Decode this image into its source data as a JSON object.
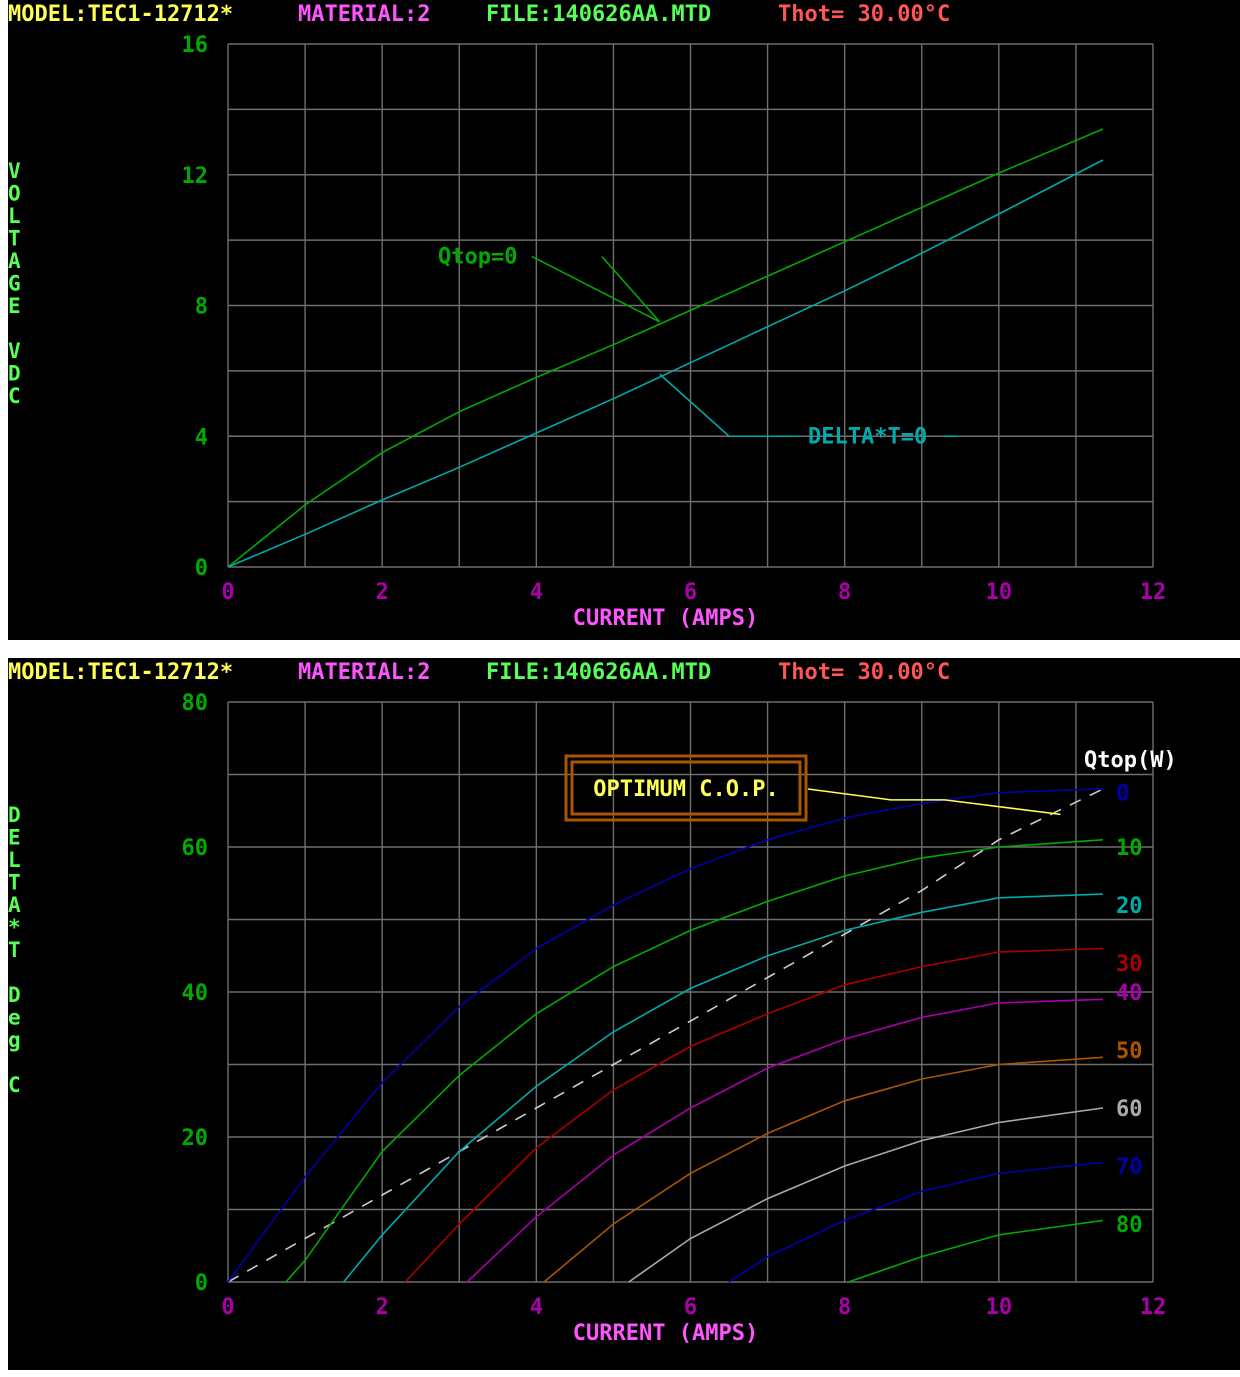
{
  "colors": {
    "background": "#000000",
    "grid": "#6e6e6e",
    "header_model": "#ffff55",
    "header_material": "#ff55ff",
    "header_file": "#55ff55",
    "header_thot": "#ff5555",
    "axis_tick": "#aa00aa",
    "yaxis_tick": "#00aa00",
    "axis_title": "#ff55ff",
    "ylabel": "#55ff55"
  },
  "charts": [
    {
      "header": {
        "model": "MODEL:TEC1-12712*",
        "material": "MATERIAL:2",
        "file": "FILE:140626AA.MTD",
        "thot": "Thot= 30.00°C"
      }
    },
    {
      "header": {
        "model": "MODEL:TEC1-12712*",
        "material": "MATERIAL:2",
        "file": "FILE:140626AA.MTD",
        "thot": "Thot= 30.00°C"
      }
    }
  ],
  "chart_data": [
    {
      "type": "line",
      "xlabel": "CURRENT (AMPS)",
      "ylabel": "VOLTAGE VDC",
      "ylabel_chars": [
        "V",
        "O",
        "L",
        "T",
        "A",
        "G",
        "E",
        "",
        "V",
        "D",
        "C"
      ],
      "xlim": [
        0,
        12
      ],
      "ylim": [
        0,
        16
      ],
      "xticks": [
        "0",
        "2",
        "4",
        "6",
        "8",
        "10",
        "12"
      ],
      "yticks": [
        "0",
        "4",
        "8",
        "12",
        "16"
      ],
      "grid": true,
      "series": [
        {
          "name": "Qtop=0",
          "color": "#00aa00",
          "x": [
            0,
            1,
            2,
            3,
            4,
            5,
            6,
            7,
            8,
            9,
            10,
            11.35
          ],
          "y": [
            0,
            1.9,
            3.5,
            4.75,
            5.8,
            6.8,
            7.85,
            8.9,
            9.95,
            11.0,
            12.05,
            13.4
          ]
        },
        {
          "name": "DELTA*T=0",
          "color": "#00aaaa",
          "x": [
            0,
            1,
            2,
            3,
            4,
            5,
            6,
            7,
            8,
            9,
            10,
            11.35
          ],
          "y": [
            0,
            1.0,
            2.05,
            3.05,
            4.1,
            5.15,
            6.25,
            7.35,
            8.45,
            9.6,
            10.8,
            12.45
          ]
        }
      ],
      "annotations": [
        {
          "text": "Qtop=0",
          "color": "#00aa00",
          "text_at": [
            3.0,
            9.5
          ],
          "leader": [
            [
              4.85,
              9.5
            ],
            [
              5.6,
              7.5
            ]
          ]
        },
        {
          "text": "DELTA*T=0",
          "color": "#00aaaa",
          "text_at": [
            7.6,
            4.0
          ],
          "leader": [
            [
              7.4,
              4.0
            ],
            [
              6.5,
              4.0
            ],
            [
              5.6,
              5.9
            ]
          ]
        }
      ]
    },
    {
      "type": "line",
      "xlabel": "CURRENT (AMPS)",
      "ylabel": "DELTA*T Deg C",
      "ylabel_chars": [
        "D",
        "E",
        "L",
        "T",
        "A",
        "*",
        "T",
        "",
        "D",
        "e",
        "g",
        "",
        "C"
      ],
      "xlim": [
        0,
        12
      ],
      "ylim": [
        0,
        80
      ],
      "xticks": [
        "0",
        "2",
        "4",
        "6",
        "8",
        "10",
        "12"
      ],
      "yticks": [
        "0",
        "20",
        "40",
        "60",
        "80"
      ],
      "grid": true,
      "legend_title": "Qtop(W)",
      "series": [
        {
          "name": "0",
          "color": "#0000aa",
          "x": [
            0,
            1,
            2,
            3,
            4,
            5,
            6,
            7,
            8,
            9,
            10,
            11.35
          ],
          "y": [
            0,
            14.5,
            27.5,
            38,
            46,
            52,
            57,
            61,
            64,
            66,
            67.5,
            68
          ]
        },
        {
          "name": "10",
          "color": "#00aa00",
          "x": [
            0.75,
            1,
            2,
            3,
            4,
            5,
            6,
            7,
            8,
            9,
            10,
            11.35
          ],
          "y": [
            0,
            3,
            18,
            28.5,
            37,
            43.5,
            48.5,
            52.5,
            56,
            58.5,
            60,
            61
          ]
        },
        {
          "name": "20",
          "color": "#00aaaa",
          "x": [
            1.5,
            2,
            3,
            4,
            5,
            6,
            7,
            8,
            9,
            10,
            11.35
          ],
          "y": [
            0,
            6.5,
            18,
            27,
            34.5,
            40.5,
            45,
            48.5,
            51,
            53,
            53.5
          ]
        },
        {
          "name": "30",
          "color": "#aa0000",
          "x": [
            2.3,
            3,
            4,
            5,
            6,
            7,
            8,
            9,
            10,
            11.35
          ],
          "y": [
            0,
            8,
            18.5,
            26.5,
            32.5,
            37,
            41,
            43.5,
            45.5,
            46
          ]
        },
        {
          "name": "40",
          "color": "#aa00aa",
          "x": [
            3.1,
            4,
            5,
            6,
            7,
            8,
            9,
            10,
            11.35
          ],
          "y": [
            0,
            9,
            17.5,
            24,
            29.5,
            33.5,
            36.5,
            38.5,
            39
          ]
        },
        {
          "name": "50",
          "color": "#aa5500",
          "x": [
            4.1,
            5,
            6,
            7,
            8,
            9,
            10,
            11.35
          ],
          "y": [
            0,
            8,
            15,
            20.5,
            25,
            28,
            30,
            31
          ]
        },
        {
          "name": "60",
          "color": "#aaaaaa",
          "x": [
            5.2,
            6,
            7,
            8,
            9,
            10,
            11.35
          ],
          "y": [
            0,
            6,
            11.5,
            16,
            19.5,
            22,
            24
          ]
        },
        {
          "name": "70",
          "color": "#0000aa",
          "x": [
            6.5,
            7,
            8,
            9,
            10,
            11.35
          ],
          "y": [
            0,
            3.5,
            8.5,
            12.5,
            15,
            16.5
          ]
        },
        {
          "name": "80",
          "color": "#00aa00",
          "x": [
            8.05,
            9,
            10,
            11.35
          ],
          "y": [
            0,
            3.5,
            6.5,
            8.5
          ]
        }
      ],
      "optimum_cop_line": {
        "name": "OPTIMUM C.O.P.",
        "color": "#cccccc",
        "x": [
          0,
          1,
          2,
          3,
          4,
          5,
          6,
          7,
          8,
          9,
          10,
          11.35
        ],
        "y": [
          0,
          6,
          12,
          18,
          24,
          30,
          36,
          42,
          48,
          54,
          61,
          68
        ]
      },
      "annotation": {
        "text": "OPTIMUM C.O.P.",
        "color": "#ffff55",
        "border": "#aa5500",
        "leader": [
          [
            8.6,
            66.5
          ],
          [
            9.3,
            66.5
          ],
          [
            10.8,
            64.5
          ]
        ]
      },
      "legend_labels": [
        {
          "text": "0",
          "color": "#0000aa",
          "y": 67.5
        },
        {
          "text": "10",
          "color": "#00aa00",
          "y": 60
        },
        {
          "text": "20",
          "color": "#00aaaa",
          "y": 52
        },
        {
          "text": "30",
          "color": "#aa0000",
          "y": 44
        },
        {
          "text": "40",
          "color": "#aa00aa",
          "y": 40
        },
        {
          "text": "50",
          "color": "#aa5500",
          "y": 32
        },
        {
          "text": "60",
          "color": "#aaaaaa",
          "y": 24
        },
        {
          "text": "70",
          "color": "#0000aa",
          "y": 16
        },
        {
          "text": "80",
          "color": "#00aa00",
          "y": 8
        }
      ]
    }
  ]
}
